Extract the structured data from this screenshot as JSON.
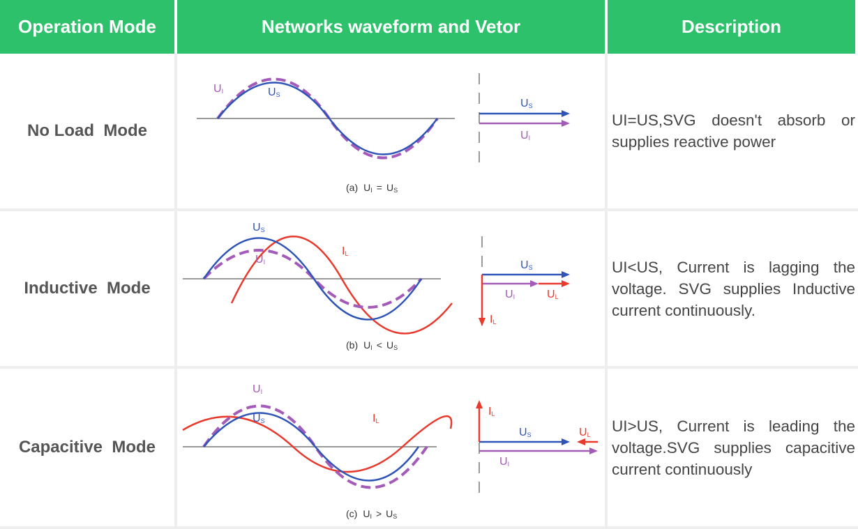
{
  "header": {
    "col1": "Operation Mode",
    "col2": "Networks waveform and Vetor",
    "col3": "Description"
  },
  "rows": [
    {
      "mode": "No Load  Mode",
      "caption_prefix": "(a)",
      "caption_relation": "=",
      "description": "UI=US,SVG doesn't absorb or supplies reactive power"
    },
    {
      "mode": "Inductive  Mode",
      "caption_prefix": "(b)",
      "caption_relation": "<",
      "description": "UI<US, Current is lagging the voltage. SVG supplies Inductive current continuously."
    },
    {
      "mode": "Capacitive  Mode",
      "caption_prefix": "(c)",
      "caption_relation": ">",
      "description": "UI>US, Current is leading the voltage.SVG supplies capacitive current continuously"
    }
  ],
  "symbols": {
    "U": "U",
    "I": "I",
    "sub_I": "I",
    "sub_S": "S",
    "sub_L": "L"
  },
  "colors": {
    "header_bg": "#2ec16b",
    "us_blue": "#2f54b8",
    "ui_purple": "#a45ab8",
    "il_red": "#e8392c",
    "axis_grey": "#999999"
  }
}
